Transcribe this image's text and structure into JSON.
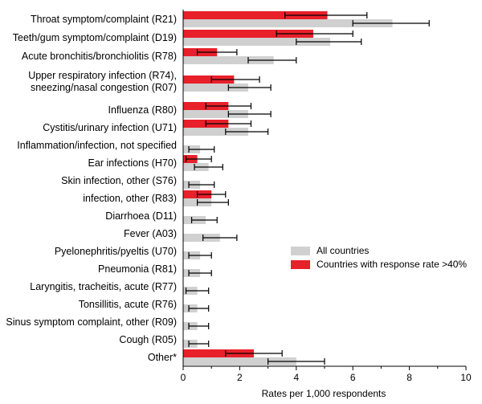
{
  "chart_data": {
    "type": "bar",
    "orientation": "horizontal",
    "xlabel": "Rates per 1,000 respondents",
    "ylabel": "",
    "xlim": [
      0,
      10
    ],
    "xticks": [
      "0",
      "2",
      "4",
      "6",
      "8",
      "10"
    ],
    "grid": false,
    "legend_position": "lower-right",
    "colors": {
      "all": "#d0d0d0",
      "response": "#e8202a",
      "error": "#000000"
    },
    "categories": [
      "Throat symptom/complaint (R21)",
      "Teeth/gum symptom/complaint (D19)",
      "Acute bronchitis/bronchiolitis (R78)",
      "Upper respiratory infection (R74), sneezing/nasal congestion (R07)",
      "Influenza (R80)",
      "Cystitis/urinary infection (U71)",
      "Inflammation/infection, not specified",
      "Ear infections (H70)",
      "Skin infection, other (S76)",
      "infection, other (R83)",
      "Diarrhoea (D11)",
      "Fever (A03)",
      "Pyelonephritis/pyeltis (U70)",
      "Pneumonia (R81)",
      "Laryngitis, tracheitis, acute (R77)",
      "Tonsillitis, acute (R76)",
      "Sinus symptom complaint, other (R09)",
      "Cough (R05)",
      "Other*"
    ],
    "category_lines": [
      [
        "Throat symptom/complaint (R21)"
      ],
      [
        "Teeth/gum symptom/complaint (D19)"
      ],
      [
        "Acute bronchitis/bronchiolitis (R78)"
      ],
      [
        "Upper respiratory infection (R74),",
        "sneezing/nasal congestion (R07)"
      ],
      [
        "Influenza (R80)"
      ],
      [
        "Cystitis/urinary infection (U71)"
      ],
      [
        "Inflammation/infection, not specified"
      ],
      [
        "Ear infections (H70)"
      ],
      [
        "Skin infection, other (S76)"
      ],
      [
        "infection, other (R83)"
      ],
      [
        "Diarrhoea (D11)"
      ],
      [
        "Fever (A03)"
      ],
      [
        "Pyelonephritis/pyeltis (U70)"
      ],
      [
        "Pneumonia (R81)"
      ],
      [
        "Laryngitis, tracheitis, acute (R77)"
      ],
      [
        "Tonsillitis, acute (R76)"
      ],
      [
        "Sinus symptom complaint, other (R09)"
      ],
      [
        "Cough (R05)"
      ],
      [
        "Other*"
      ]
    ],
    "series": [
      {
        "name": "All countries",
        "values": [
          7.4,
          5.2,
          3.2,
          2.3,
          2.3,
          2.3,
          0.6,
          0.9,
          0.6,
          1.0,
          0.8,
          1.3,
          0.6,
          0.6,
          0.5,
          0.5,
          0.5,
          0.5,
          4.0
        ],
        "ci_low": [
          6.0,
          4.0,
          2.3,
          1.6,
          1.6,
          1.5,
          0.2,
          0.4,
          0.2,
          0.5,
          0.3,
          0.7,
          0.2,
          0.2,
          0.1,
          0.2,
          0.2,
          0.2,
          3.0
        ],
        "ci_high": [
          8.7,
          6.3,
          4.0,
          3.1,
          3.1,
          3.0,
          1.1,
          1.4,
          1.1,
          1.6,
          1.2,
          1.9,
          1.0,
          1.0,
          0.9,
          0.9,
          0.9,
          0.9,
          5.0
        ]
      },
      {
        "name": "Countries with response rate >40%",
        "values": [
          5.1,
          4.6,
          1.2,
          1.8,
          1.6,
          1.6,
          0,
          0.5,
          0,
          1.0,
          0,
          0,
          0,
          0,
          0,
          0,
          0,
          0,
          2.5
        ],
        "ci_low": [
          3.6,
          3.3,
          0.5,
          1.0,
          0.8,
          0.8,
          null,
          0.1,
          null,
          0.5,
          null,
          null,
          null,
          null,
          null,
          null,
          null,
          null,
          1.5
        ],
        "ci_high": [
          6.5,
          6.0,
          1.9,
          2.7,
          2.4,
          2.4,
          null,
          1.0,
          null,
          1.5,
          null,
          null,
          null,
          null,
          null,
          null,
          null,
          null,
          3.5
        ]
      }
    ]
  }
}
